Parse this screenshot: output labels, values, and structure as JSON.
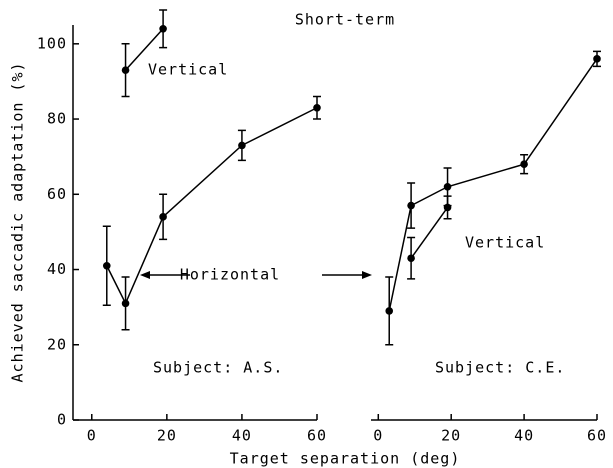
{
  "chart_data": [
    {
      "type": "line",
      "title": "Short-term",
      "ylabel": "Achieved saccadic adaptation (%)",
      "xlabel": "Target separation (deg)",
      "xlim": [
        -5,
        60
      ],
      "xticks": [
        0,
        20,
        40,
        60
      ],
      "ylim": [
        0,
        105
      ],
      "yticks": [
        0,
        20,
        40,
        60,
        80,
        100
      ],
      "series": [
        {
          "name": "Horizontal",
          "color": "#000000",
          "x": [
            4,
            9,
            19,
            40,
            60
          ],
          "values": [
            41,
            31,
            54,
            73,
            83
          ],
          "errors": [
            10.5,
            7,
            6,
            4,
            3
          ]
        },
        {
          "name": "Vertical",
          "color": "#000000",
          "x": [
            9,
            19
          ],
          "values": [
            93,
            104
          ],
          "errors": [
            7,
            5
          ]
        }
      ],
      "annotations": [
        "Vertical",
        "Horizontal",
        "Subject: A.S."
      ]
    },
    {
      "type": "line",
      "xlim": [
        -2,
        60
      ],
      "xticks": [
        0,
        20,
        40,
        60
      ],
      "ylim": [
        0,
        105
      ],
      "series": [
        {
          "name": "Horizontal",
          "color": "#000000",
          "x": [
            3,
            9,
            19,
            40,
            60
          ],
          "values": [
            29,
            57,
            62,
            68,
            96
          ],
          "errors": [
            9,
            6,
            5,
            2.5,
            2
          ]
        },
        {
          "name": "Vertical",
          "color": "#000000",
          "x": [
            9,
            19
          ],
          "values": [
            43,
            56.5
          ],
          "errors": [
            5.5,
            3
          ]
        }
      ],
      "annotations": [
        "Vertical",
        "Subject: C.E."
      ]
    }
  ]
}
